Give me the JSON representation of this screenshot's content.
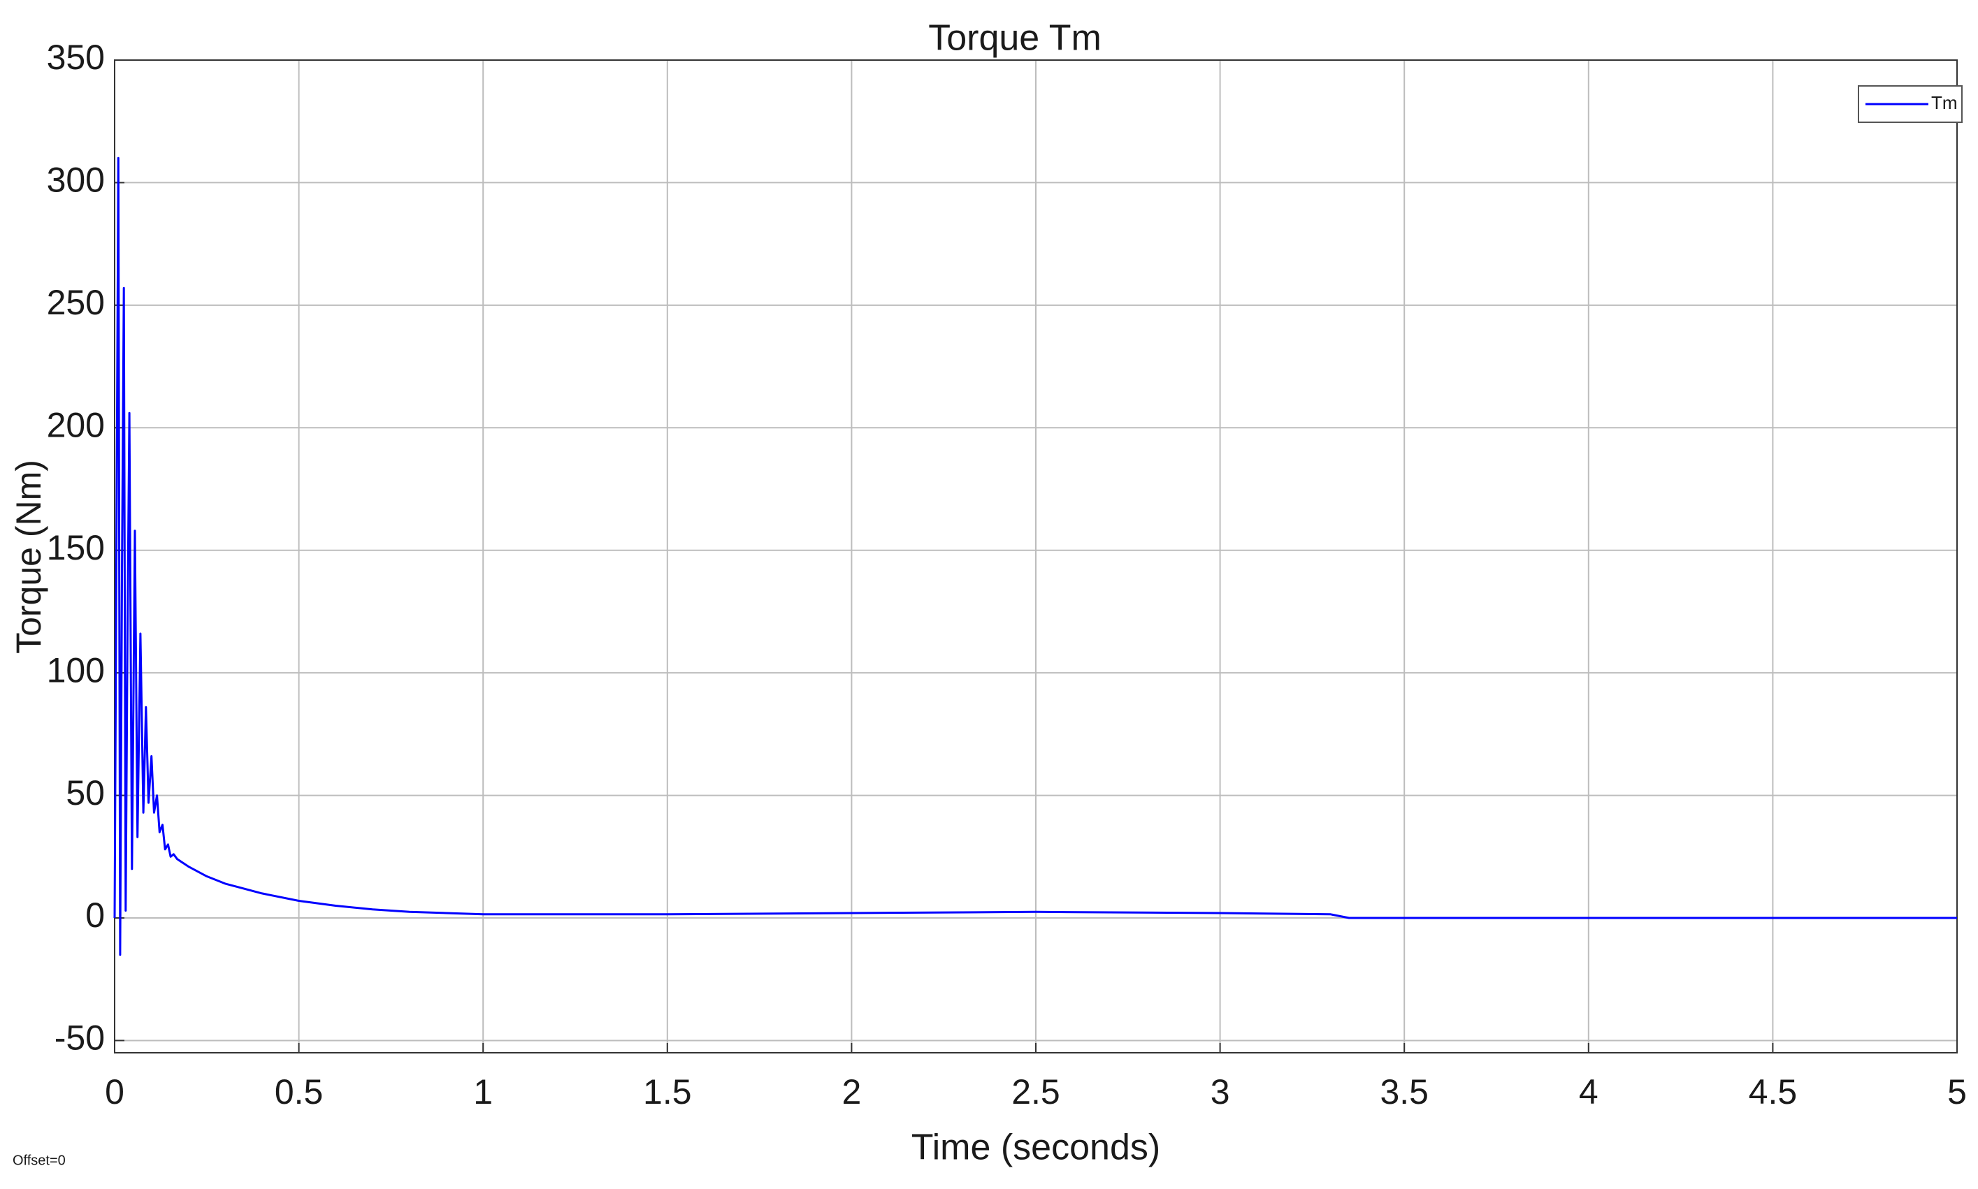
{
  "chart_data": {
    "type": "line",
    "title": "Torque Tm",
    "x_label": "Time (seconds)",
    "y_label": "Torque (Nm)",
    "annotation": "Offset=0",
    "x": [
      0,
      0.005,
      0.01,
      0.015,
      0.02,
      0.025,
      0.03,
      0.035,
      0.04,
      0.047,
      0.055,
      0.062,
      0.07,
      0.078,
      0.085,
      0.092,
      0.1,
      0.107,
      0.115,
      0.122,
      0.13,
      0.137,
      0.145,
      0.152,
      0.16,
      0.17,
      0.2,
      0.25,
      0.3,
      0.4,
      0.5,
      0.6,
      0.7,
      0.8,
      0.9,
      1.0,
      1.5,
      2.0,
      2.5,
      3.0,
      3.3,
      3.35,
      4.0,
      4.5,
      5.0
    ],
    "xlim": [
      0,
      5
    ],
    "xticks": [
      0,
      0.5,
      1,
      1.5,
      2,
      2.5,
      3,
      3.5,
      4,
      4.5,
      5
    ],
    "ylim": [
      -55,
      350
    ],
    "yticks": [
      -50,
      0,
      50,
      100,
      150,
      200,
      250,
      300,
      350
    ],
    "grid": true,
    "legend": "upper right",
    "series": [
      {
        "name": "Tm",
        "color": "#0000ff",
        "values": [
          0,
          150,
          310,
          -15,
          140,
          257,
          3,
          120,
          206,
          20,
          158,
          33,
          116,
          43,
          86,
          47,
          66,
          43,
          50,
          35,
          38,
          28,
          30,
          25,
          26,
          24,
          21,
          17,
          14,
          10,
          7,
          5,
          3.5,
          2.5,
          2,
          1.5,
          1.5,
          2,
          2.5,
          2,
          1.5,
          0,
          0,
          0,
          0
        ]
      }
    ]
  }
}
